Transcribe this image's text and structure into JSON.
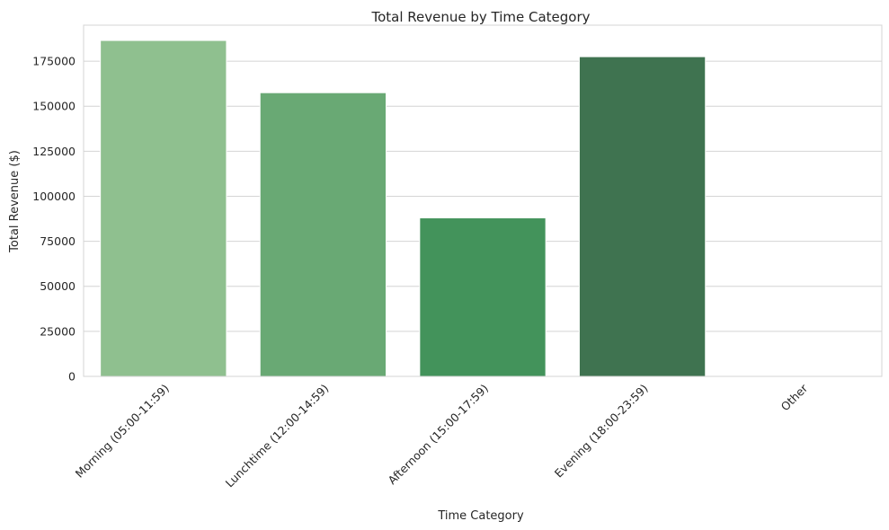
{
  "chart_data": {
    "type": "bar",
    "title": "Total Revenue by Time Category",
    "xlabel": "Time Category",
    "ylabel": "Total Revenue ($)",
    "categories": [
      "Morning (05:00-11:59)",
      "Lunchtime (12:00-14:59)",
      "Afternoon (15:00-17:59)",
      "Evening (18:00-23:59)",
      "Other"
    ],
    "values": [
      186500,
      157500,
      88000,
      177500,
      0
    ],
    "colors": [
      "#8fc08f",
      "#69a974",
      "#43935b",
      "#3f7350",
      "#3a6b48"
    ],
    "ylim": [
      0,
      195000
    ],
    "yticks": [
      0,
      25000,
      50000,
      75000,
      100000,
      125000,
      150000,
      175000
    ],
    "grid": true,
    "legend": "none"
  }
}
